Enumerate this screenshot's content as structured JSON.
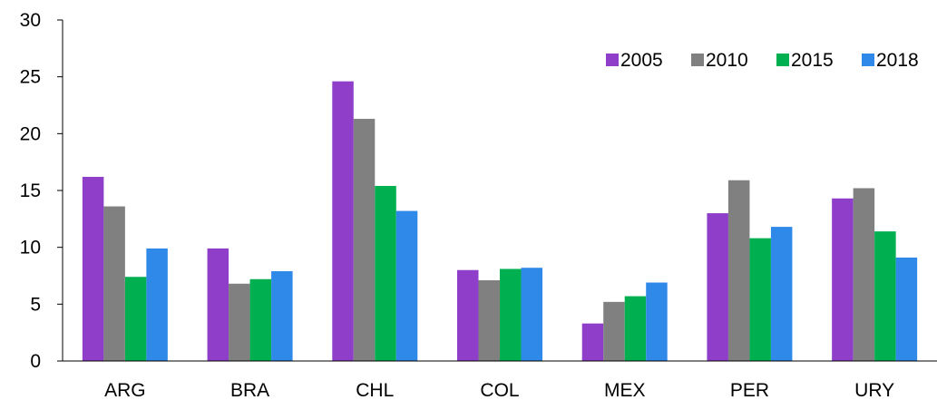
{
  "chart_data": {
    "type": "bar",
    "title": "",
    "xlabel": "",
    "ylabel": "",
    "categories": [
      "ARG",
      "BRA",
      "CHL",
      "COL",
      "MEX",
      "PER",
      "URY"
    ],
    "series": [
      {
        "name": "2005",
        "color": "#8e3ec8",
        "values": [
          16.2,
          9.9,
          24.6,
          8.0,
          3.3,
          13.0,
          14.3
        ]
      },
      {
        "name": "2010",
        "color": "#808080",
        "values": [
          13.6,
          6.8,
          21.3,
          7.1,
          5.2,
          15.9,
          15.2
        ]
      },
      {
        "name": "2015",
        "color": "#00b050",
        "values": [
          7.4,
          7.2,
          15.4,
          8.1,
          5.7,
          10.8,
          11.4
        ]
      },
      {
        "name": "2018",
        "color": "#2f89e8",
        "values": [
          9.9,
          7.9,
          13.2,
          8.2,
          6.9,
          11.8,
          9.1
        ]
      }
    ],
    "ylim": [
      0,
      30
    ],
    "yticks": [
      "0",
      "5",
      "10",
      "15",
      "20",
      "25",
      "30"
    ],
    "grid": false,
    "legend_position": "top-right"
  }
}
